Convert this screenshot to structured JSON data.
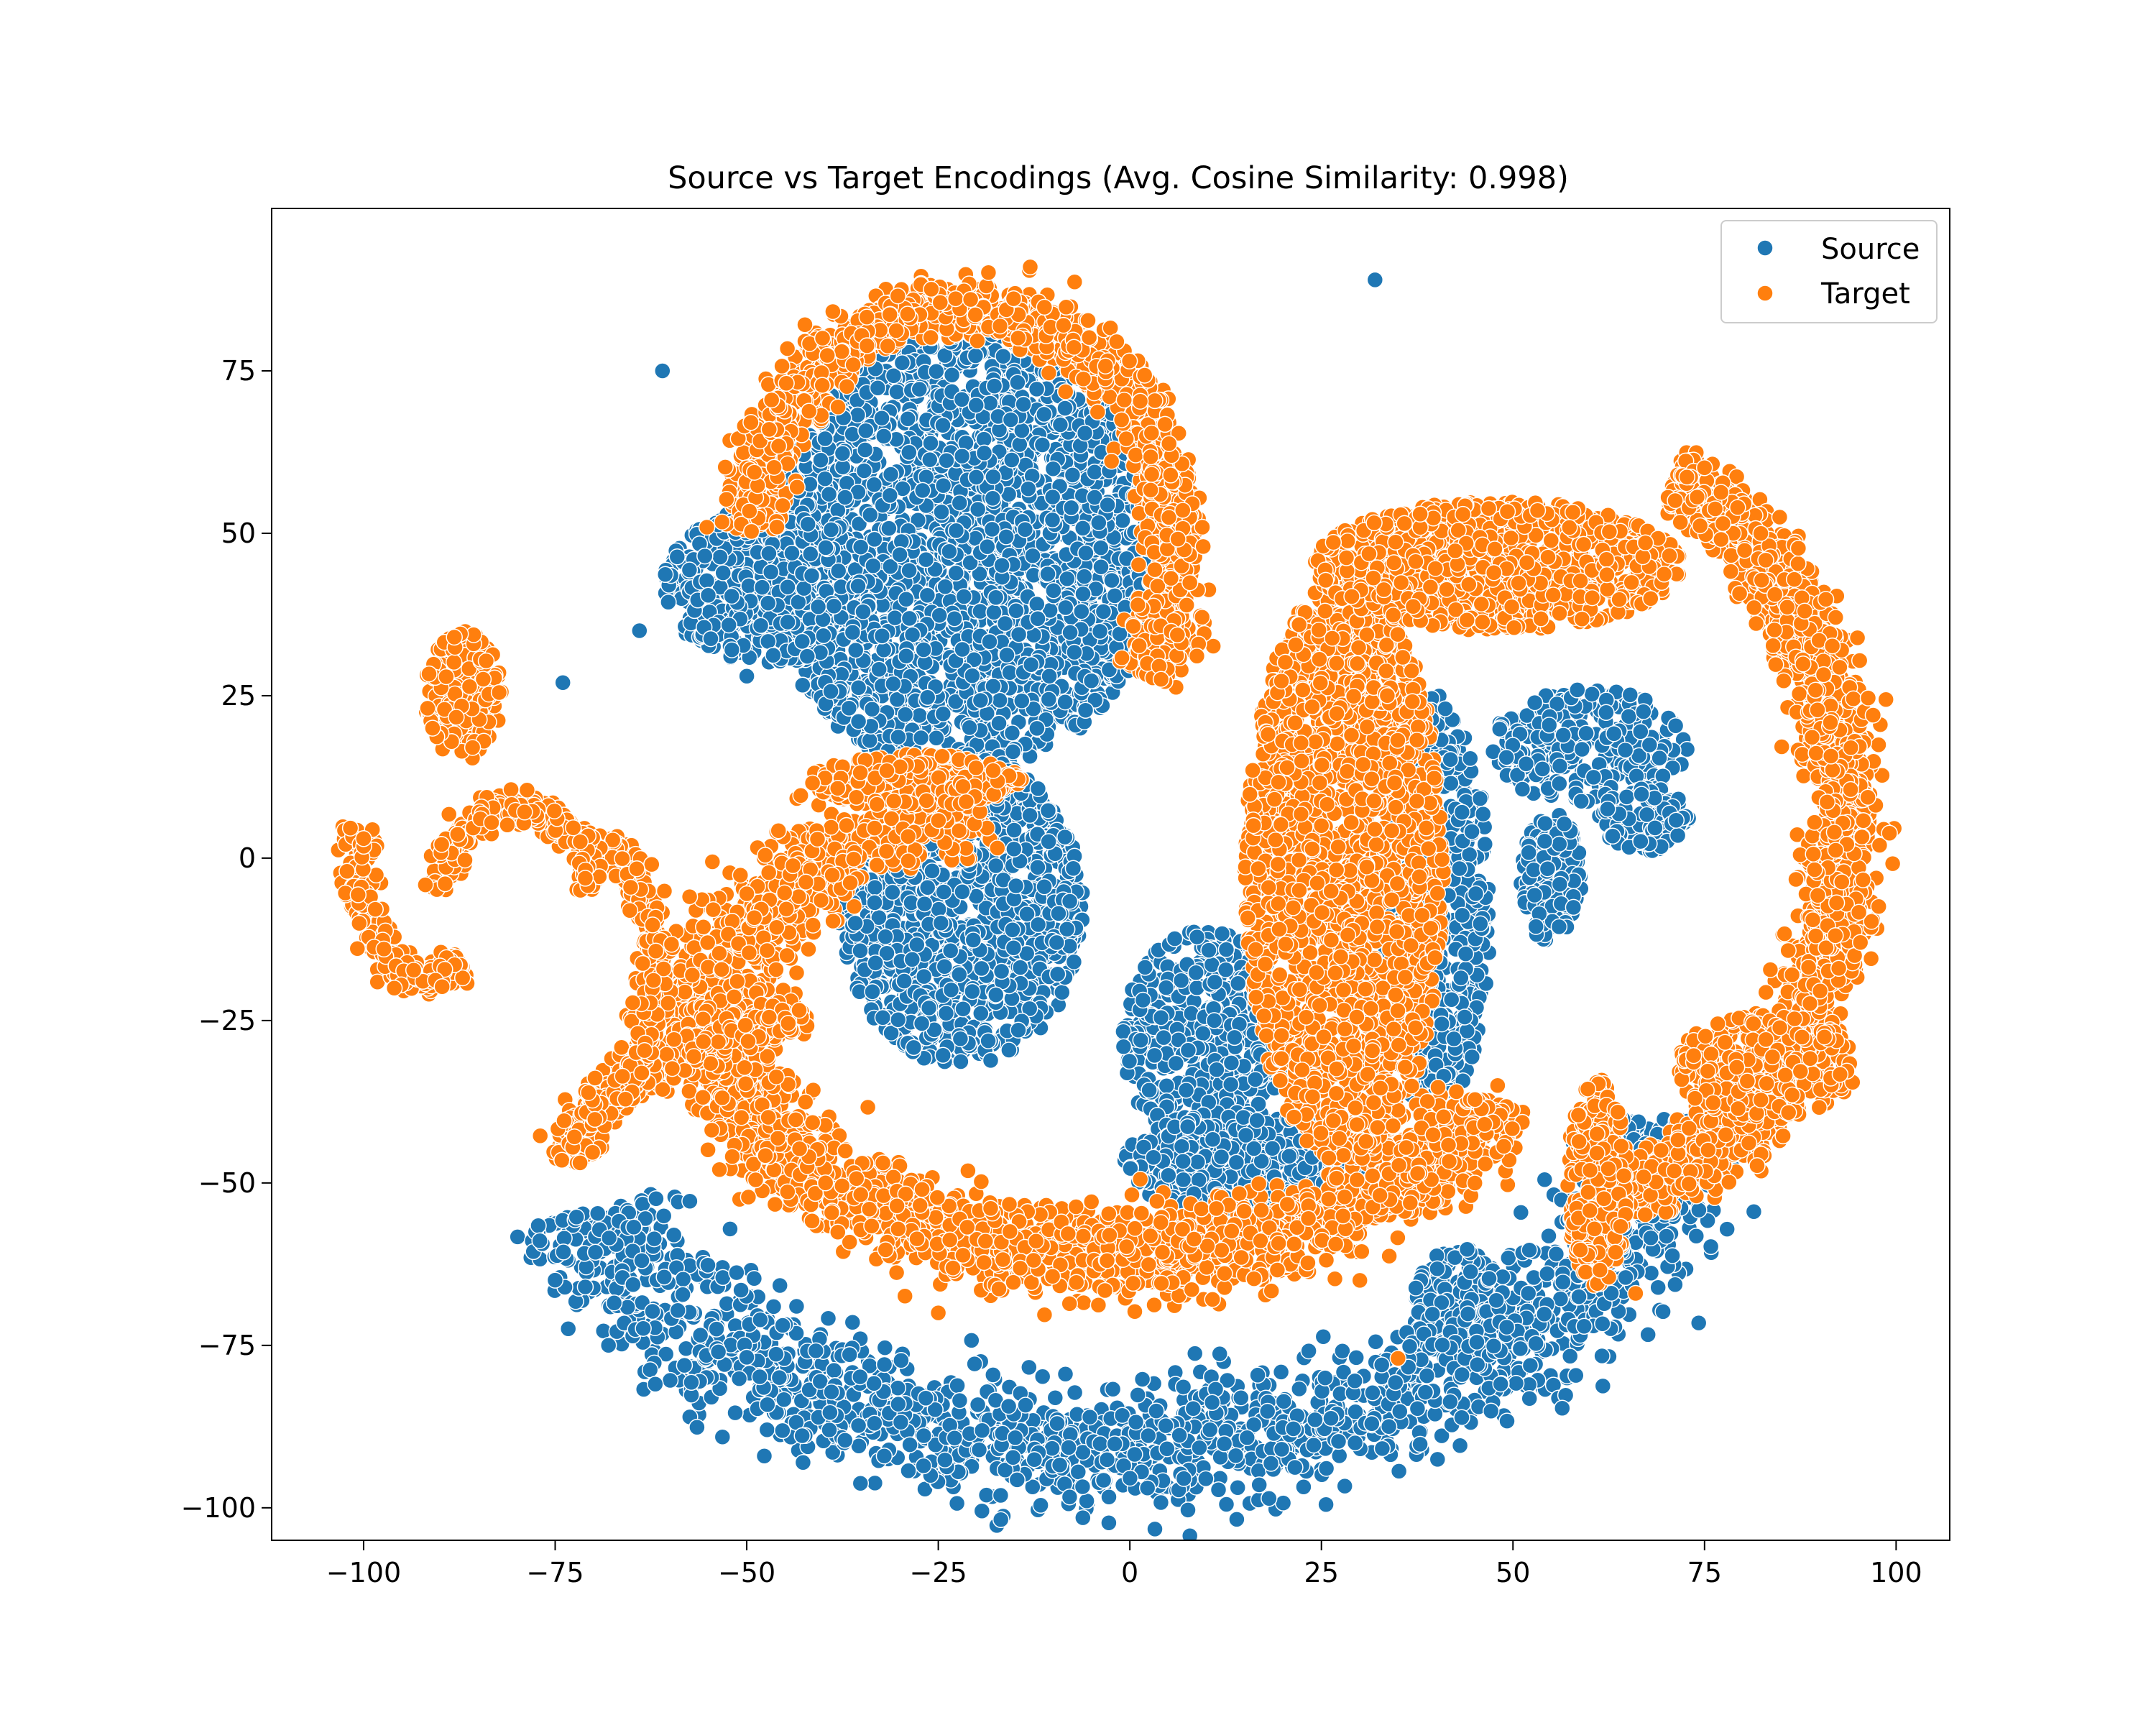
{
  "chart_data": {
    "type": "scatter",
    "title": "Source vs Target Encodings (Avg. Cosine Similarity: 0.998)",
    "xlabel": "",
    "ylabel": "",
    "xlim": [
      -112,
      107
    ],
    "ylim": [
      -105,
      100
    ],
    "xticks": [
      -100,
      -75,
      -50,
      -25,
      0,
      25,
      50,
      75,
      100
    ],
    "yticks": [
      -100,
      -75,
      -50,
      -25,
      0,
      25,
      50,
      75
    ],
    "xtick_labels": [
      "−100",
      "−75",
      "−50",
      "−25",
      "0",
      "25",
      "50",
      "75",
      "100"
    ],
    "ytick_labels": [
      "−100",
      "−75",
      "−50",
      "−25",
      "0",
      "25",
      "50",
      "75"
    ],
    "grid": false,
    "legend_position": "top-right",
    "colors": {
      "Source": "#1f77b4",
      "Target": "#ff7f0e"
    },
    "series": [
      {
        "name": "Source",
        "color": "#1f77b4",
        "regions": [
          {
            "kind": "ellipse",
            "cx": -22,
            "cy": 47,
            "rx": 26,
            "ry": 34,
            "n": 2400
          },
          {
            "kind": "ellipse",
            "cx": -47,
            "cy": 42,
            "rx": 14,
            "ry": 12,
            "n": 500
          },
          {
            "kind": "ellipse",
            "cx": -22,
            "cy": -8,
            "rx": 16,
            "ry": 24,
            "n": 1100
          },
          {
            "kind": "ellipse",
            "cx": 10,
            "cy": -28,
            "rx": 11,
            "ry": 17,
            "n": 500
          },
          {
            "kind": "ellipse",
            "cx": 15,
            "cy": -47,
            "rx": 16,
            "ry": 8,
            "n": 450
          },
          {
            "kind": "ellipse",
            "cx": 40,
            "cy": -8,
            "rx": 7,
            "ry": 33,
            "n": 600
          },
          {
            "kind": "ellipse",
            "cx": 60,
            "cy": 17,
            "rx": 13,
            "ry": 9,
            "n": 250
          },
          {
            "kind": "ellipse",
            "cx": 67,
            "cy": 6,
            "rx": 6,
            "ry": 5,
            "n": 120
          },
          {
            "kind": "ellipse",
            "cx": 55,
            "cy": -3,
            "rx": 4,
            "ry": 10,
            "n": 150
          },
          {
            "kind": "ellipse",
            "cx": 43,
            "cy": -69,
            "rx": 6,
            "ry": 9,
            "n": 260
          },
          {
            "kind": "arc",
            "cx": -2,
            "cy": -35,
            "rx": 73,
            "ry": 56,
            "a0": 200,
            "a1": 355,
            "w": 5,
            "n": 1800
          }
        ],
        "outliers": [
          [
            32,
            89
          ],
          [
            45,
            -43
          ],
          [
            -61,
            75
          ],
          [
            -64,
            35
          ],
          [
            -74,
            27
          ],
          [
            -50,
            28
          ]
        ]
      },
      {
        "name": "Target",
        "color": "#ff7f0e",
        "regions": [
          {
            "kind": "arc",
            "cx": -22,
            "cy": 47,
            "rx": 28,
            "ry": 38,
            "a0": -30,
            "a1": 175,
            "w": 2.2,
            "n": 1400
          },
          {
            "kind": "arc",
            "cx": -2,
            "cy": -25,
            "rx": 52,
            "ry": 36,
            "a0": 110,
            "a1": 340,
            "w": 3.5,
            "n": 2600
          },
          {
            "kind": "ellipse",
            "cx": -28,
            "cy": 12,
            "rx": 14,
            "ry": 4,
            "n": 300
          },
          {
            "kind": "ellipse",
            "cx": 28,
            "cy": -2,
            "rx": 13,
            "ry": 45,
            "n": 1900
          },
          {
            "kind": "ellipse",
            "cx": 48,
            "cy": 45,
            "rx": 24,
            "ry": 10,
            "n": 1000
          },
          {
            "kind": "arc",
            "cx": 63,
            "cy": 5,
            "rx": 30,
            "ry": 55,
            "a0": -90,
            "a1": 75,
            "w": 2.6,
            "n": 1800
          },
          {
            "kind": "ellipse",
            "cx": 83,
            "cy": -32,
            "rx": 12,
            "ry": 8,
            "n": 300
          },
          {
            "kind": "ellipse",
            "cx": 61,
            "cy": -50,
            "rx": 4,
            "ry": 16,
            "n": 300
          },
          {
            "kind": "arc",
            "cx": -26,
            "cy": -52,
            "rx": 48,
            "ry": 30,
            "a0": 110,
            "a1": 170,
            "w": 1.5,
            "n": 500
          },
          {
            "kind": "arc",
            "cx": -70,
            "cy": -18,
            "rx": 8,
            "ry": 20,
            "a0": -100,
            "a1": 100,
            "w": 1.2,
            "n": 400
          },
          {
            "kind": "arc",
            "cx": -80,
            "cy": -5,
            "rx": 10,
            "ry": 13,
            "a0": 0,
            "a1": 180,
            "w": 1.2,
            "n": 250
          },
          {
            "kind": "arc",
            "cx": -92,
            "cy": 5,
            "rx": 9,
            "ry": 24,
            "a0": 180,
            "a1": 300,
            "w": 1.2,
            "n": 300
          },
          {
            "kind": "ellipse",
            "cx": -87,
            "cy": 25,
            "rx": 5,
            "ry": 10,
            "n": 200
          }
        ],
        "outliers": [
          [
            -13,
            91
          ],
          [
            97,
            22
          ],
          [
            -100,
            3
          ],
          [
            -91,
            20
          ],
          [
            -96,
            -20
          ],
          [
            66,
            -67
          ],
          [
            48,
            -35
          ],
          [
            35,
            -77
          ],
          [
            -25,
            -70
          ]
        ]
      }
    ]
  }
}
